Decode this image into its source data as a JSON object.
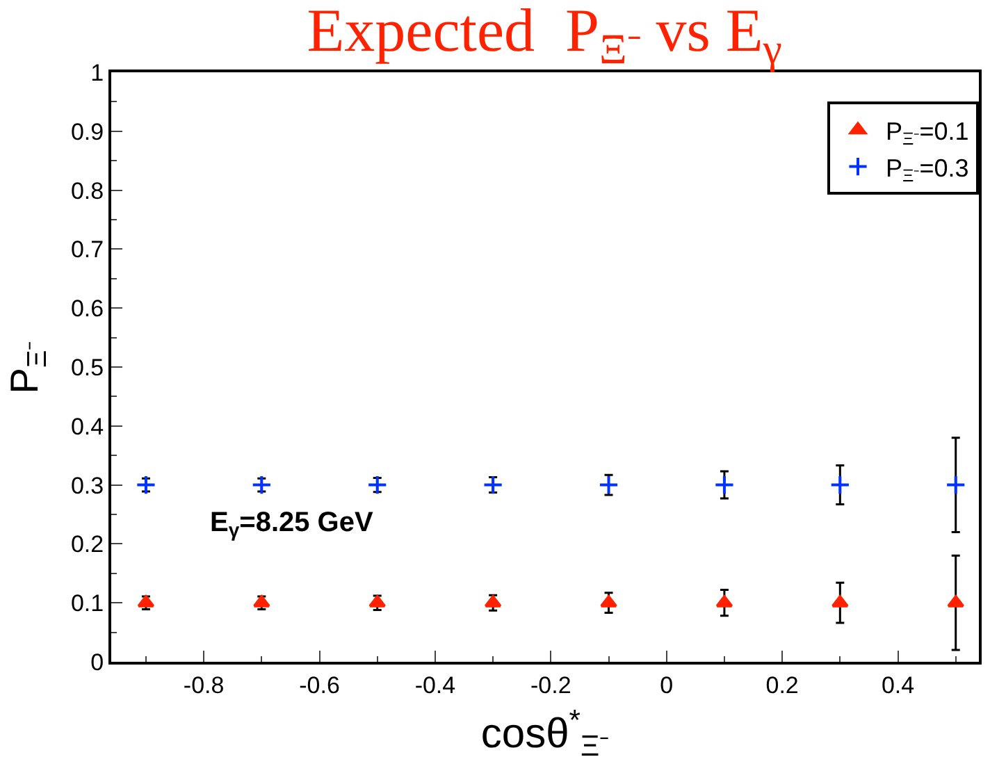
{
  "chart_data": {
    "type": "scatter",
    "title": "Expected  P$_{Ξ⁻}$ vs E$_{γ}$",
    "xlabel": "cosθ$^{*}$$_{Ξ⁻}$",
    "ylabel": "P$_{Ξ⁻}$",
    "x": [
      -0.9,
      -0.7,
      -0.5,
      -0.3,
      -0.1,
      0.1,
      0.3,
      0.5
    ],
    "series": [
      {
        "name": "P$_{Ξ⁻}$=0.1",
        "color": "#ff2200",
        "marker": "triangle",
        "values": [
          0.1,
          0.1,
          0.1,
          0.1,
          0.1,
          0.1,
          0.1,
          0.1
        ],
        "errors": [
          0.011,
          0.011,
          0.012,
          0.013,
          0.017,
          0.022,
          0.034,
          0.08
        ]
      },
      {
        "name": "P$_{Ξ⁻}$=0.3",
        "color": "#0033ff",
        "marker": "cross",
        "values": [
          0.3,
          0.3,
          0.3,
          0.3,
          0.3,
          0.3,
          0.3,
          0.3
        ],
        "errors": [
          0.011,
          0.011,
          0.012,
          0.013,
          0.017,
          0.023,
          0.033,
          0.08
        ]
      }
    ],
    "annotations": [
      "E$_{γ}$=8.25 GeV"
    ],
    "xlim": [
      -0.96,
      0.54
    ],
    "xticks": [
      -0.8,
      -0.6,
      -0.4,
      -0.2,
      0,
      0.2,
      0.4
    ],
    "ylim": [
      0,
      1
    ],
    "yticks": [
      0,
      0.1,
      0.2,
      0.3,
      0.4,
      0.5,
      0.6,
      0.7,
      0.8,
      0.9,
      1
    ],
    "legend": "top right"
  }
}
